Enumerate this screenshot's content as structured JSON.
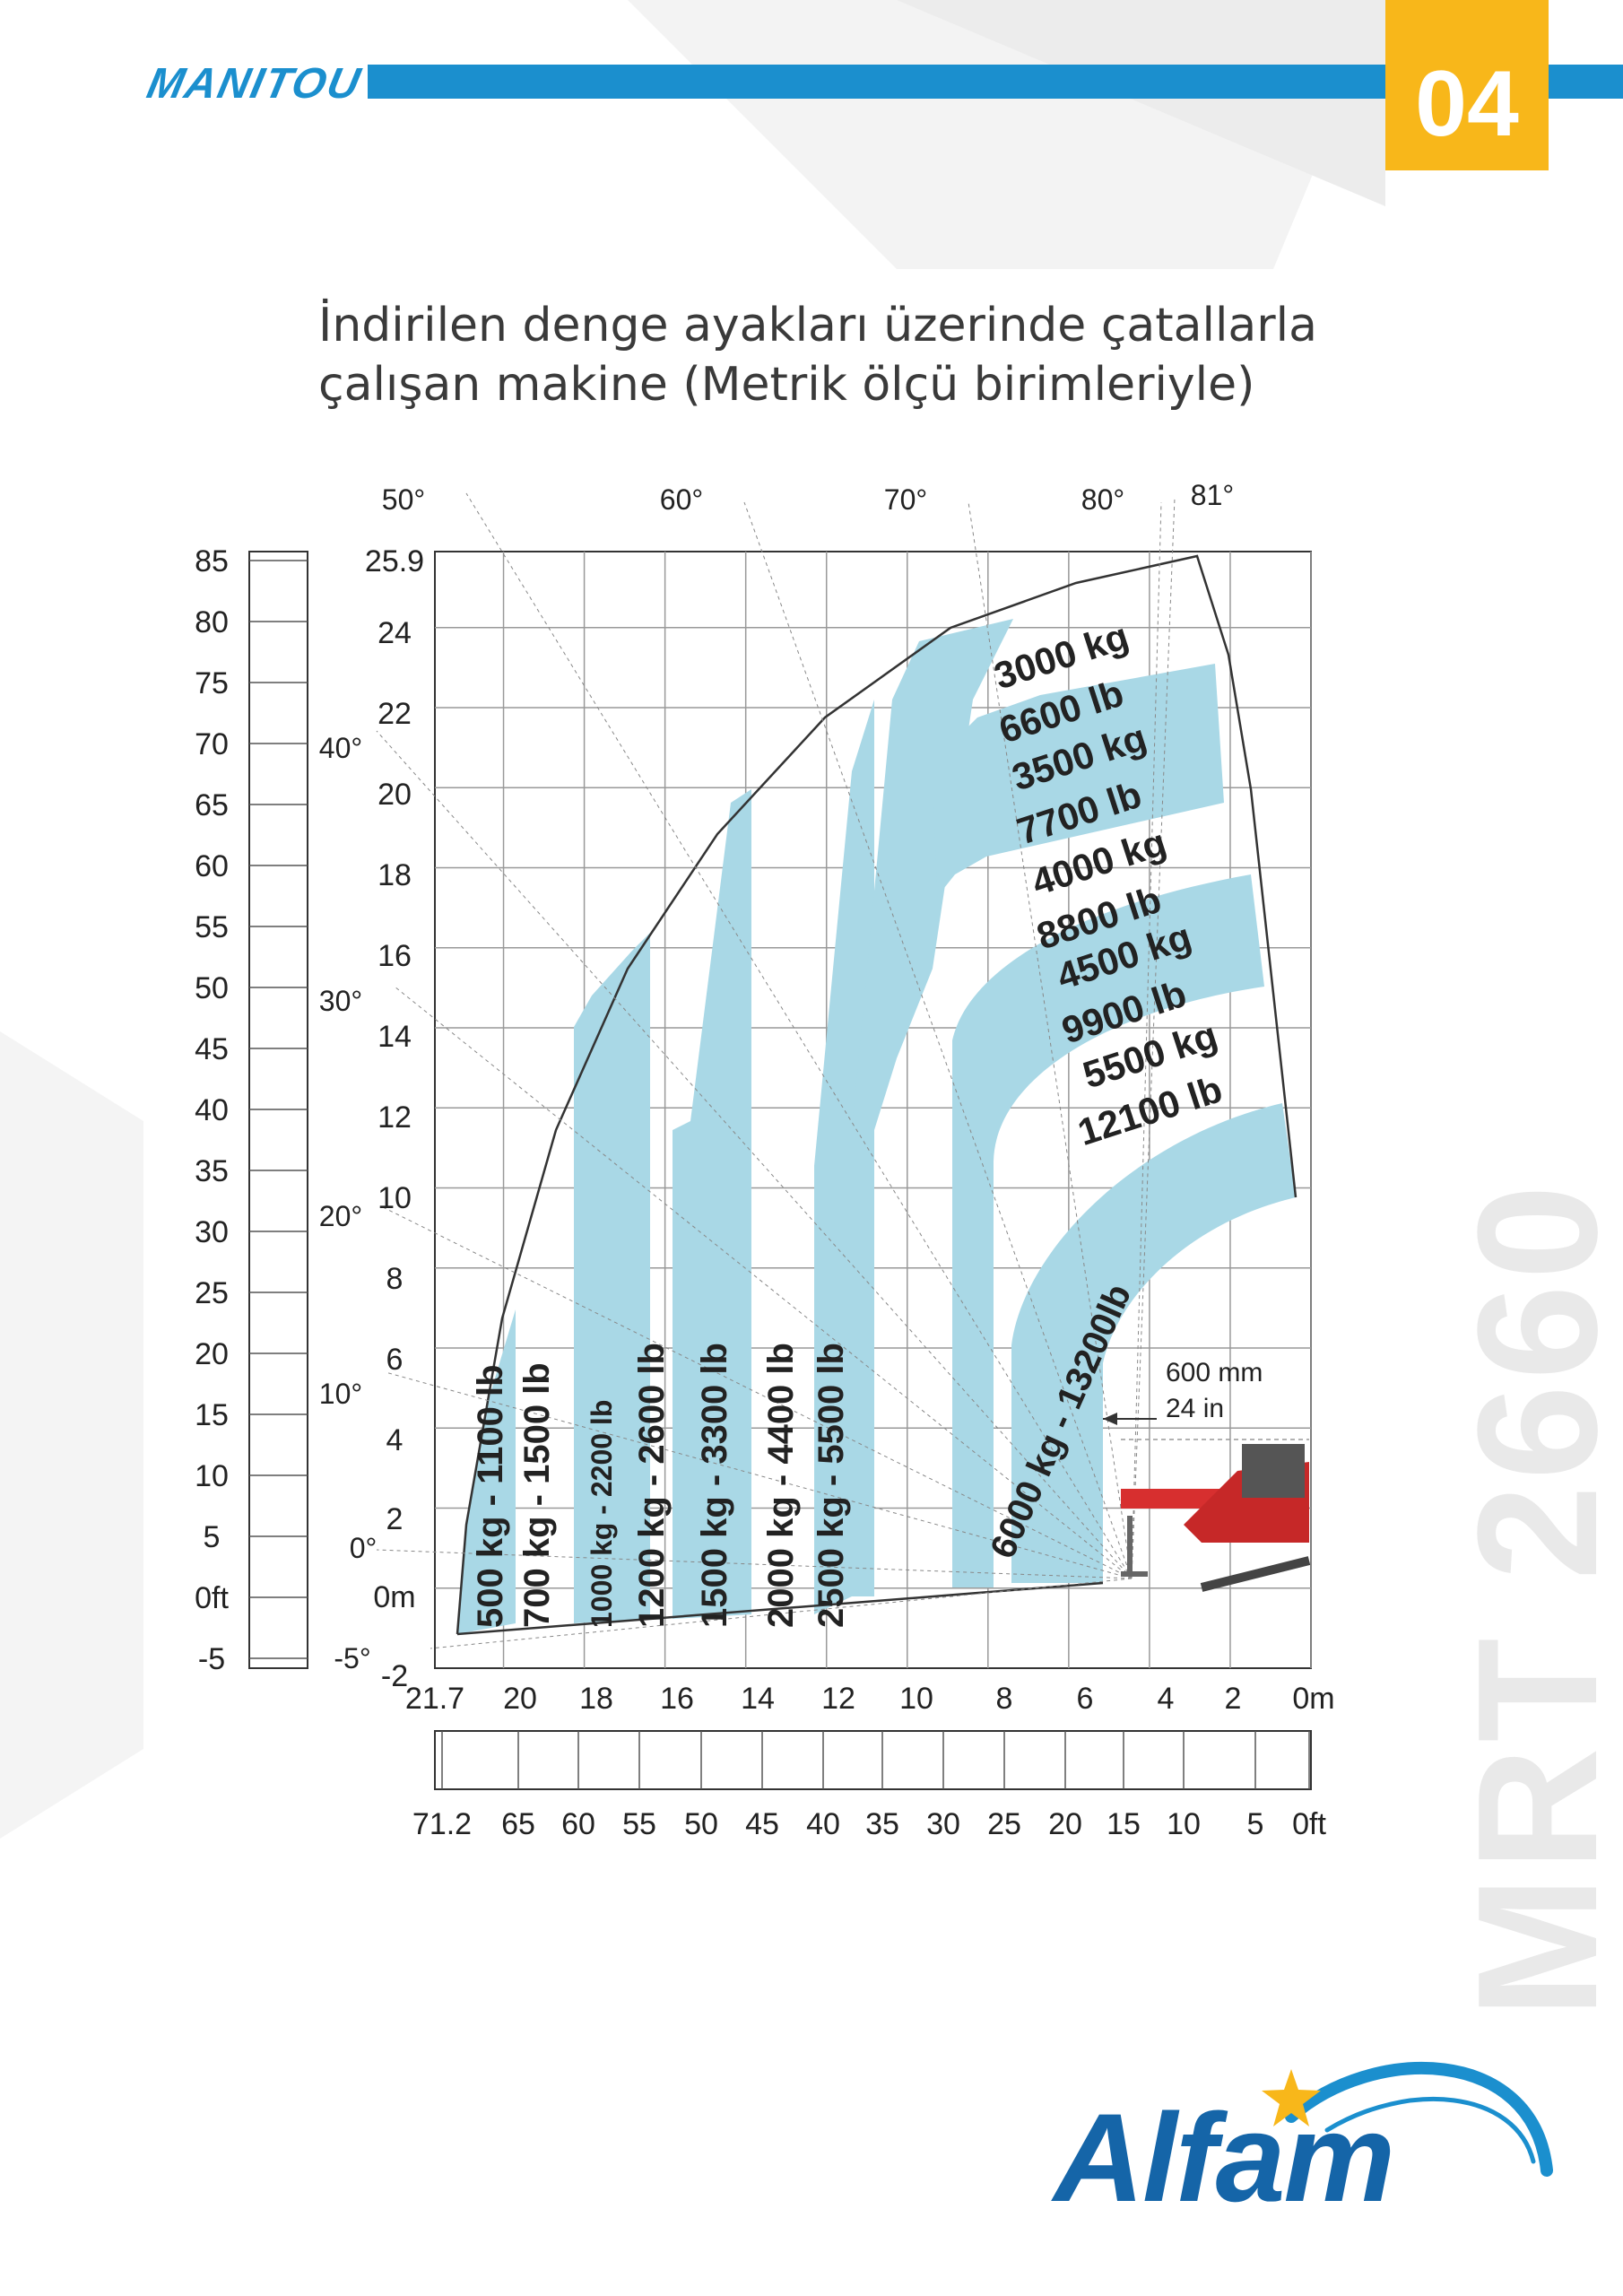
{
  "header": {
    "brand": "MANITOU",
    "page_number": "04",
    "accent_color": "#1b8fce",
    "badge_color": "#f8b71a"
  },
  "title": {
    "line1": "İndirilen denge ayakları üzerinde çatallarla",
    "line2": "çalışan makine (Metrik ölçü birimleriyle)"
  },
  "model": "MRT 2660",
  "logo": {
    "text": "Alfam",
    "icon": "star-swoosh-icon",
    "color": "#1565a8",
    "star_color": "#f8b71a"
  },
  "chart_data": {
    "type": "load-chart",
    "band_color": "#a9d8e6",
    "x_axis_m": {
      "ticks": [
        "21.7",
        "20",
        "18",
        "16",
        "14",
        "12",
        "10",
        "8",
        "6",
        "4",
        "2",
        "0m"
      ],
      "range": [
        21.7,
        0
      ]
    },
    "x_axis_ft": {
      "ticks": [
        "71.2",
        "65",
        "60",
        "55",
        "50",
        "45",
        "40",
        "35",
        "30",
        "25",
        "20",
        "15",
        "10",
        "5",
        "0ft"
      ]
    },
    "y_axis_m": {
      "ticks": [
        "25.9",
        "24",
        "22",
        "20",
        "18",
        "16",
        "14",
        "12",
        "10",
        "8",
        "6",
        "4",
        "2",
        "0m",
        "-2"
      ],
      "range": [
        -2,
        25.9
      ]
    },
    "y_axis_ft": {
      "ticks": [
        "85",
        "80",
        "75",
        "70",
        "65",
        "60",
        "55",
        "50",
        "45",
        "40",
        "35",
        "30",
        "25",
        "20",
        "15",
        "10",
        "5",
        "0ft",
        "-5"
      ]
    },
    "angle_labels": [
      "50°",
      "60°",
      "70°",
      "80°",
      "81°",
      "40°",
      "30°",
      "20°",
      "10°",
      "0°",
      "-5°"
    ],
    "vertical_zones": [
      {
        "label": "500 kg - 1100 lb",
        "fill": "blue"
      },
      {
        "label": "700 kg - 1500 lb",
        "fill": "white"
      },
      {
        "label": "1000 kg - 2200 lb",
        "fill": "blue"
      },
      {
        "label": "1200 kg - 2600 lb",
        "fill": "white"
      },
      {
        "label": "1500 kg - 3300 lb",
        "fill": "blue"
      },
      {
        "label": "2000 kg - 4400 lb",
        "fill": "white"
      },
      {
        "label": "2500 kg - 5500 lb",
        "fill": "blue"
      }
    ],
    "arc_zones": [
      {
        "label": [
          "3000 kg",
          "6600 lb"
        ],
        "fill": "blue"
      },
      {
        "label": [
          "3500 kg",
          "7700 lb"
        ],
        "fill": "blue"
      },
      {
        "label": [
          "4000 kg",
          "8800 lb"
        ],
        "fill": "white"
      },
      {
        "label": [
          "4500 kg",
          "9900 lb"
        ],
        "fill": "blue"
      },
      {
        "label": [
          "5500 kg",
          "12100 lb"
        ],
        "fill": "white"
      },
      {
        "label": [
          "6000 kg - 13200lb"
        ],
        "fill": "blue"
      }
    ],
    "load_center": {
      "mm": "600 mm",
      "in": "24 in"
    }
  }
}
